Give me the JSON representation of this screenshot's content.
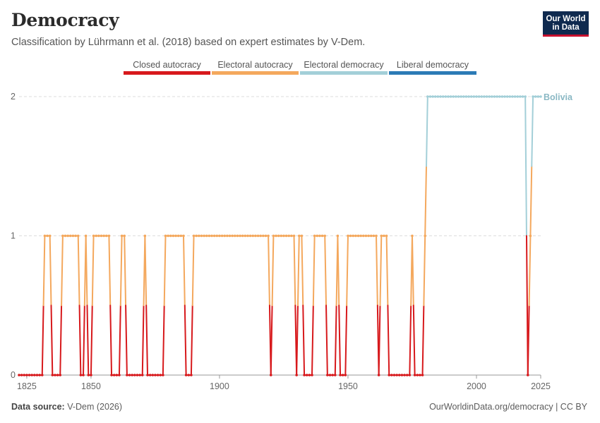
{
  "header": {
    "title": "Democracy",
    "subtitle": "Classification by Lührmann et al. (2018) based on expert estimates by V-Dem.",
    "logo_line1": "Our World",
    "logo_line2": "in Data"
  },
  "footer": {
    "source_label": "Data source:",
    "source_value": "V-Dem (2026)",
    "link": "OurWorldinData.org/democracy | CC BY"
  },
  "chart_data": {
    "type": "line",
    "title": "Democracy",
    "xlabel": "",
    "ylabel": "",
    "xlim": [
      1822,
      2025
    ],
    "ylim": [
      0,
      2
    ],
    "x_ticks": [
      1825,
      1850,
      1900,
      1950,
      2000,
      2025
    ],
    "y_ticks": [
      0,
      1,
      2
    ],
    "grid": "horizontal dashed",
    "legend_position": "top",
    "categories": [
      {
        "value": 0,
        "name": "Closed autocracy",
        "color": "#d7191c"
      },
      {
        "value": 1,
        "name": "Electoral autocracy",
        "color": "#f4a85d"
      },
      {
        "value": 2,
        "name": "Electoral democracy",
        "color": "#a3cfd8"
      },
      {
        "value": 3,
        "name": "Liberal democracy",
        "color": "#2c7bb6"
      }
    ],
    "series": [
      {
        "name": "Bolivia",
        "label_color": "#8ab8c4",
        "segments": [
          {
            "start": 1822,
            "end": 1831,
            "value": 0
          },
          {
            "start": 1832,
            "end": 1834,
            "value": 1
          },
          {
            "start": 1835,
            "end": 1838,
            "value": 0
          },
          {
            "start": 1839,
            "end": 1845,
            "value": 1
          },
          {
            "start": 1846,
            "end": 1847,
            "value": 0
          },
          {
            "start": 1848,
            "end": 1848,
            "value": 1
          },
          {
            "start": 1849,
            "end": 1850,
            "value": 0
          },
          {
            "start": 1851,
            "end": 1857,
            "value": 1
          },
          {
            "start": 1858,
            "end": 1861,
            "value": 0
          },
          {
            "start": 1862,
            "end": 1863,
            "value": 1
          },
          {
            "start": 1864,
            "end": 1870,
            "value": 0
          },
          {
            "start": 1871,
            "end": 1871,
            "value": 1
          },
          {
            "start": 1872,
            "end": 1878,
            "value": 0
          },
          {
            "start": 1879,
            "end": 1886,
            "value": 1
          },
          {
            "start": 1887,
            "end": 1889,
            "value": 0
          },
          {
            "start": 1890,
            "end": 1919,
            "value": 1
          },
          {
            "start": 1920,
            "end": 1920,
            "value": 0
          },
          {
            "start": 1921,
            "end": 1929,
            "value": 1
          },
          {
            "start": 1930,
            "end": 1930,
            "value": 0
          },
          {
            "start": 1931,
            "end": 1932,
            "value": 1
          },
          {
            "start": 1933,
            "end": 1936,
            "value": 0
          },
          {
            "start": 1937,
            "end": 1941,
            "value": 1
          },
          {
            "start": 1942,
            "end": 1945,
            "value": 0
          },
          {
            "start": 1946,
            "end": 1946,
            "value": 1
          },
          {
            "start": 1947,
            "end": 1949,
            "value": 0
          },
          {
            "start": 1950,
            "end": 1961,
            "value": 1
          },
          {
            "start": 1962,
            "end": 1962,
            "value": 0
          },
          {
            "start": 1963,
            "end": 1965,
            "value": 1
          },
          {
            "start": 1966,
            "end": 1974,
            "value": 0
          },
          {
            "start": 1975,
            "end": 1975,
            "value": 1
          },
          {
            "start": 1976,
            "end": 1979,
            "value": 0
          },
          {
            "start": 1980,
            "end": 1980,
            "value": 1
          },
          {
            "start": 1981,
            "end": 2019,
            "value": 2
          },
          {
            "start": 2020,
            "end": 2020,
            "value": 0
          },
          {
            "start": 2021,
            "end": 2021,
            "value": 1
          },
          {
            "start": 2022,
            "end": 2025,
            "value": 2
          }
        ]
      }
    ]
  }
}
